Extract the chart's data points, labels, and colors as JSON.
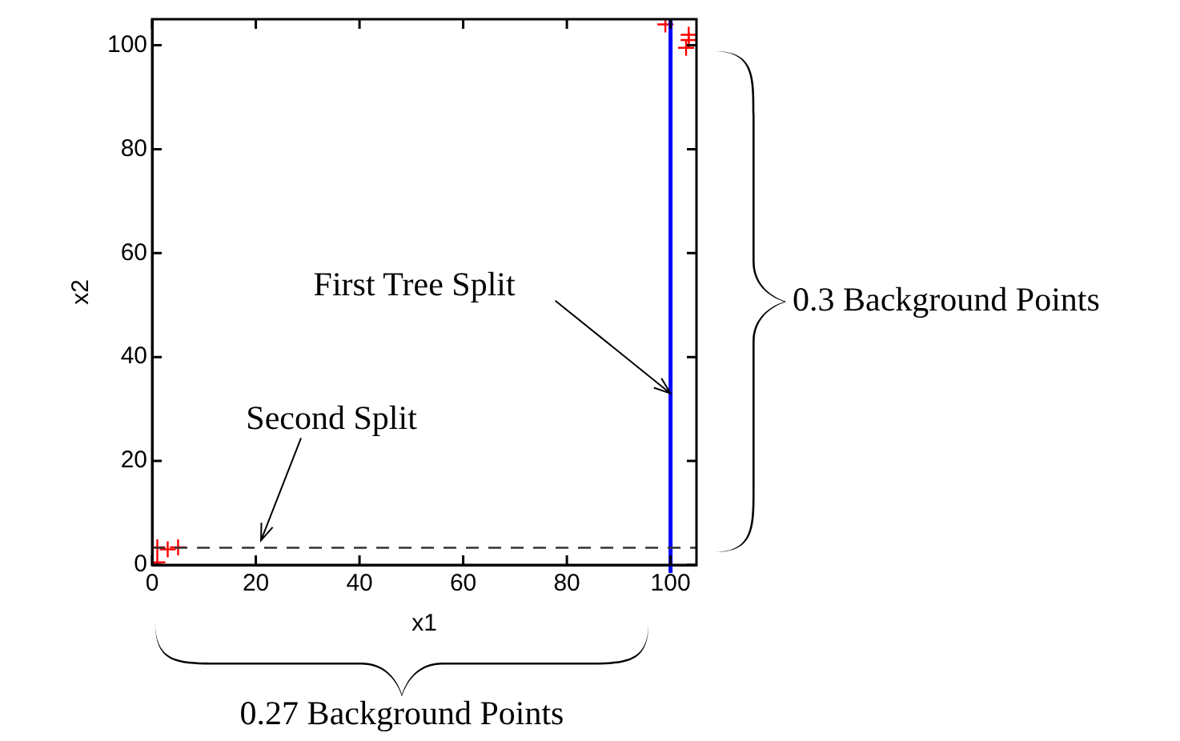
{
  "chart_data": {
    "type": "scatter",
    "xlabel": "x1",
    "ylabel": "x2",
    "series": [
      {
        "color": "#ff0000",
        "x": [
          0,
          1,
          1,
          3,
          5,
          99,
          103.5,
          103.5,
          103
        ],
        "values": [
          0,
          0.5,
          3.4,
          3,
          3.4,
          104,
          102,
          101,
          99.5
        ]
      }
    ],
    "marker": "cross",
    "grid": false,
    "legend": false,
    "xlim": [
      0,
      105
    ],
    "ylim": [
      0,
      105
    ],
    "xticks": [
      0,
      20,
      40,
      60,
      80,
      100
    ],
    "yticks": [
      0,
      20,
      40,
      60,
      80,
      100
    ],
    "ref_lines": [
      {
        "axis": "x",
        "value": 100,
        "color": "#0000ff",
        "line_style": "solid"
      },
      {
        "axis": "y",
        "value": 3.3,
        "color": "#333333",
        "line_style": "dashed"
      }
    ],
    "annotations": [
      {
        "text": "First Tree Split",
        "x": 100,
        "y": 33
      },
      "Second Split",
      "0.3 Background Points",
      "0.27 Background Points"
    ]
  }
}
